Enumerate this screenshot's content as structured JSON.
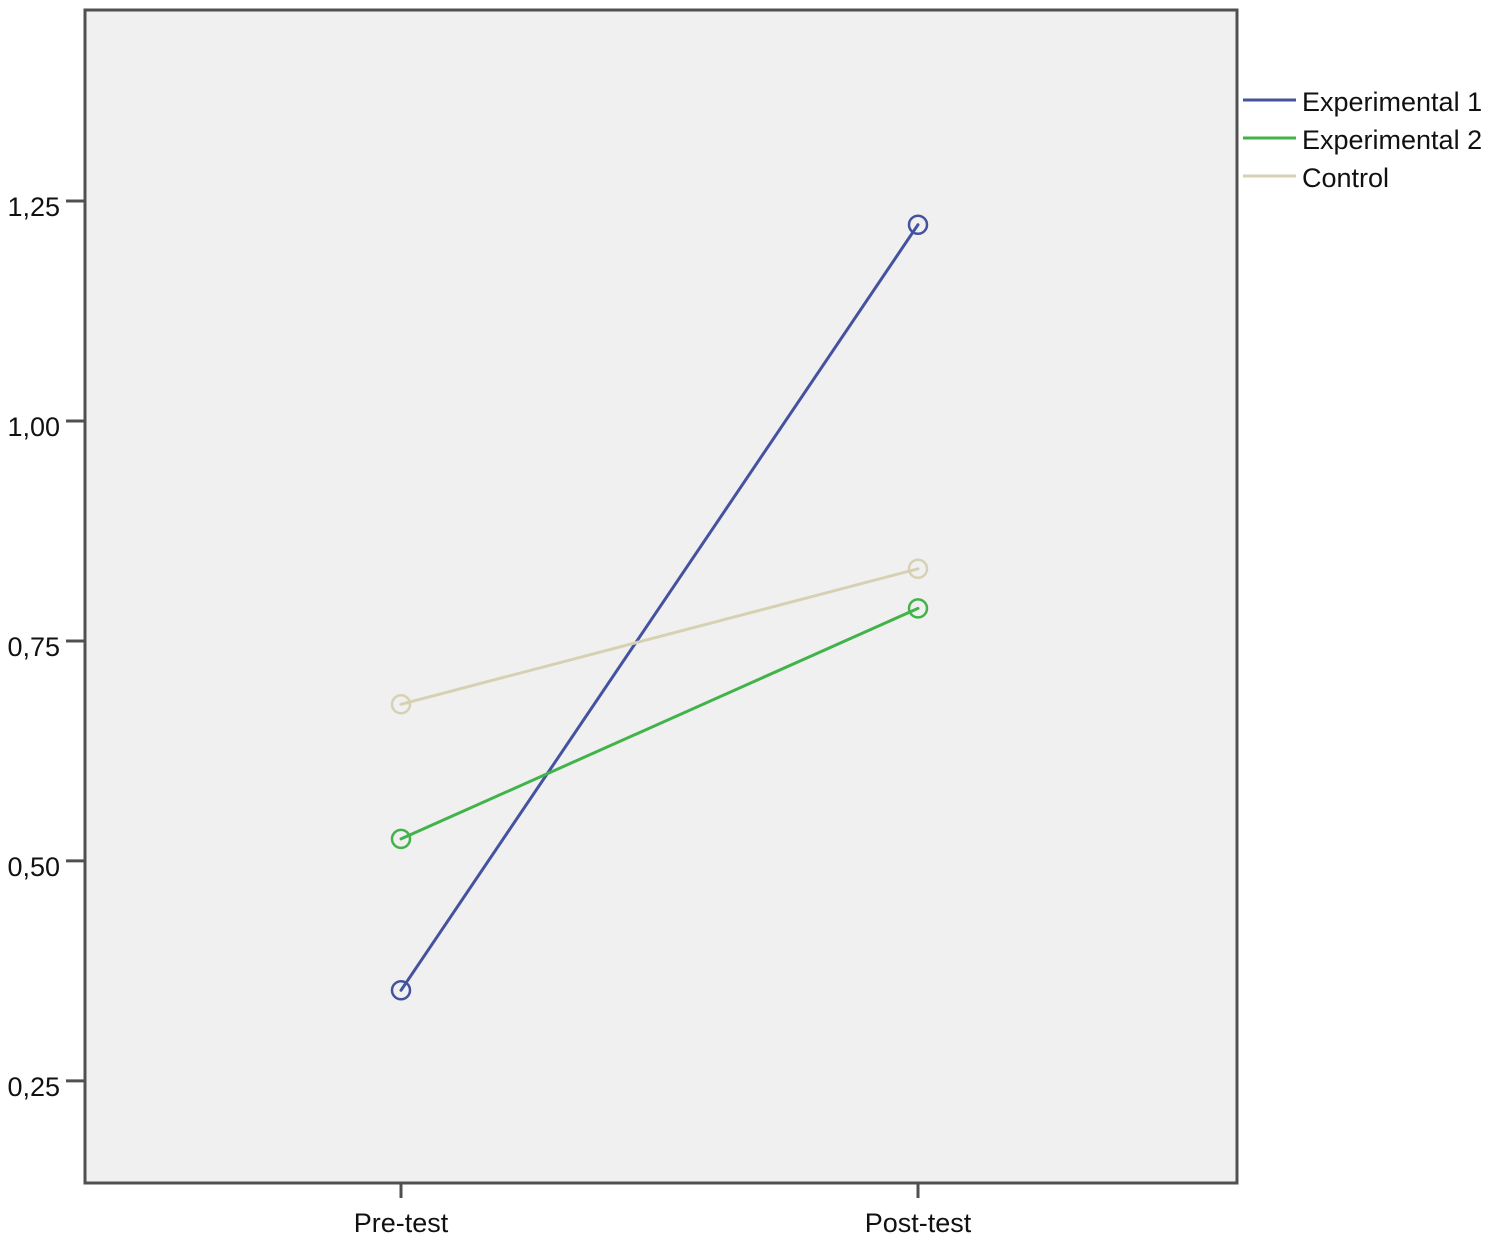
{
  "chart_data": {
    "type": "line",
    "categories": [
      "Pre-test",
      "Post-test"
    ],
    "series": [
      {
        "name": "Experimental 1",
        "values": [
          0.353,
          1.223
        ],
        "color": "#44529f"
      },
      {
        "name": "Experimental 2",
        "values": [
          0.525,
          0.787
        ],
        "color": "#41b34a"
      },
      {
        "name": "Control",
        "values": [
          0.678,
          0.832
        ],
        "color": "#d7d1b4"
      }
    ],
    "yticks": [
      {
        "value": 0.25,
        "label": "0,25"
      },
      {
        "value": 0.5,
        "label": "0,50"
      },
      {
        "value": 0.75,
        "label": "0,75"
      },
      {
        "value": 1.0,
        "label": "1,00"
      },
      {
        "value": 1.25,
        "label": "1,25"
      }
    ],
    "ylim": [
      0.134,
      1.467
    ],
    "grid": false,
    "legend_position": "right",
    "background_color": "#f0f0f0",
    "frame_color": "#505050"
  }
}
